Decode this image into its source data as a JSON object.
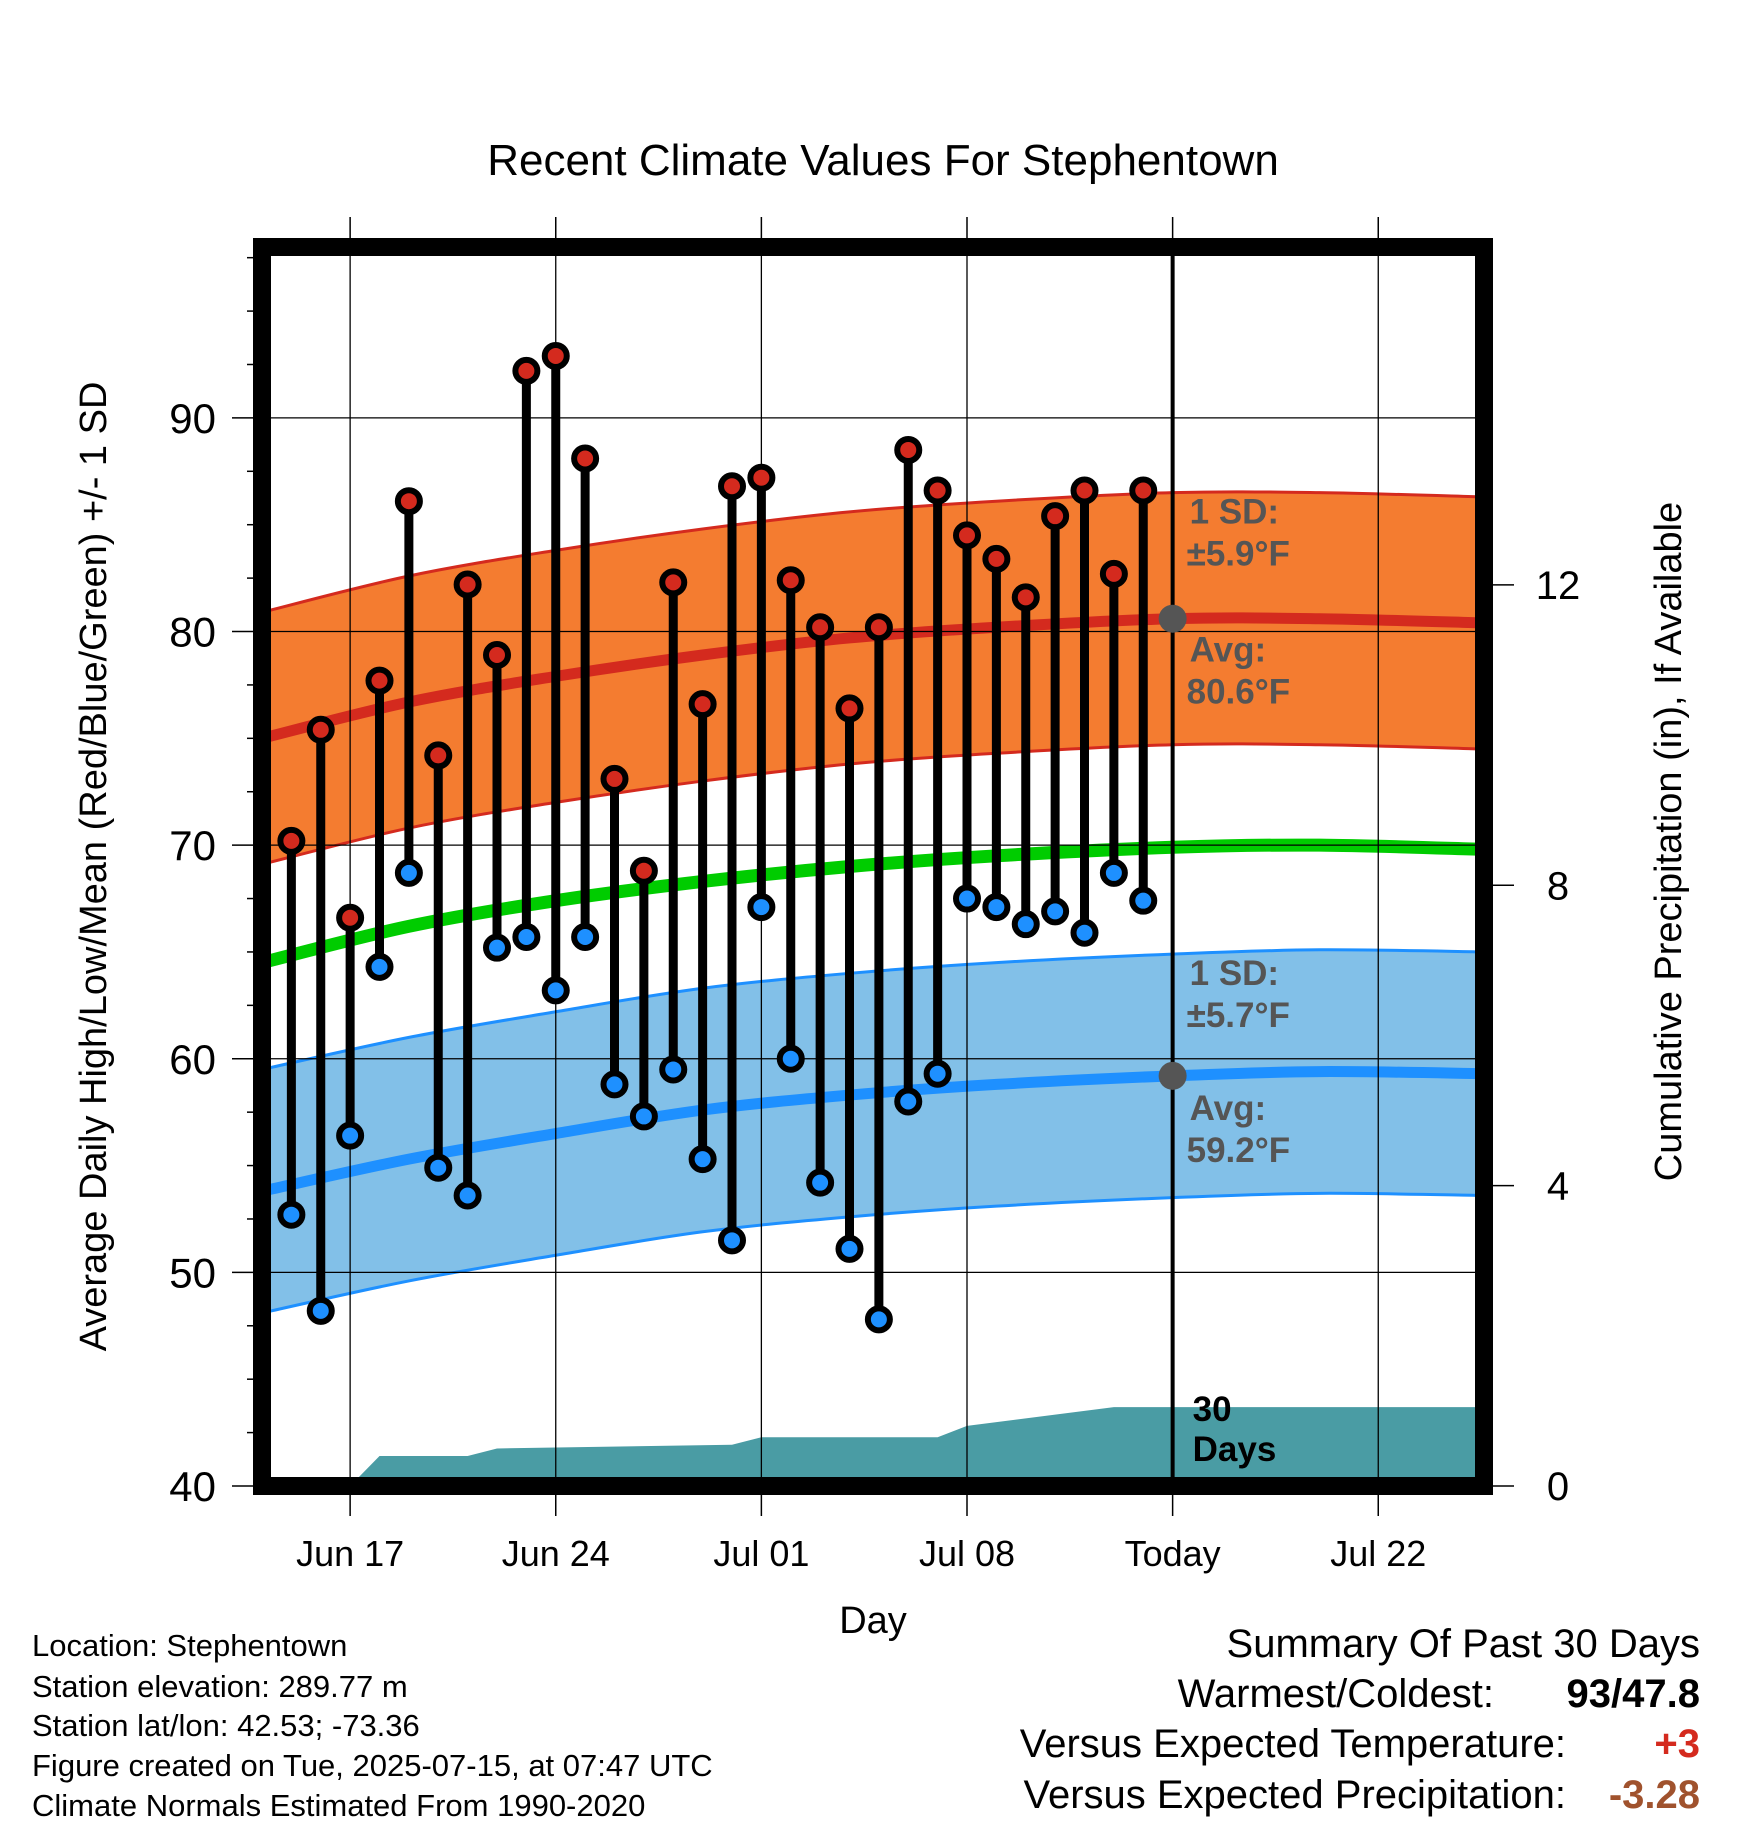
{
  "chart_data": {
    "type": "line",
    "title": "Recent Climate Values For Stephentown",
    "xlabel": "Day",
    "ylabel_left": "Average Daily High/Low/Mean (Red/Blue/Green) +/- 1 SD",
    "ylabel_right": "Cumulative Precipitation (in), If Available",
    "x_ticks": [
      {
        "day": 3,
        "label": "Jun 17"
      },
      {
        "day": 10,
        "label": "Jun 24"
      },
      {
        "day": 17,
        "label": "Jul 01"
      },
      {
        "day": 24,
        "label": "Jul 08"
      },
      {
        "day": 31,
        "label": "Today"
      },
      {
        "day": 38,
        "label": "Jul 22"
      }
    ],
    "xlim": [
      0,
      41.6
    ],
    "ylim_left": [
      40,
      98
    ],
    "yticks_left": [
      40,
      50,
      60,
      70,
      80,
      90
    ],
    "ylim_right": [
      0,
      16.5
    ],
    "yticks_right": [
      0,
      4,
      8,
      12
    ],
    "today_day": 31,
    "days": [
      1,
      2,
      3,
      4,
      5,
      6,
      7,
      8,
      9,
      10,
      11,
      12,
      13,
      14,
      15,
      16,
      17,
      18,
      19,
      20,
      21,
      22,
      23,
      24,
      25,
      26,
      27,
      28,
      29,
      30
    ],
    "daily_high": [
      70.2,
      75.4,
      66.6,
      77.7,
      86.1,
      74.2,
      82.2,
      78.9,
      92.2,
      92.9,
      88.1,
      73.1,
      68.8,
      82.3,
      76.6,
      86.8,
      87.2,
      82.4,
      80.2,
      76.4,
      80.2,
      88.5,
      86.6,
      84.5,
      83.4,
      81.6,
      85.4,
      86.6,
      82.7,
      86.6
    ],
    "daily_low": [
      52.7,
      48.2,
      56.4,
      64.3,
      68.7,
      54.9,
      53.6,
      65.2,
      65.7,
      63.2,
      65.7,
      58.8,
      57.3,
      59.5,
      55.3,
      51.5,
      67.1,
      60.0,
      54.2,
      51.1,
      47.8,
      58.0,
      59.3,
      67.5,
      67.1,
      66.3,
      66.9,
      65.9,
      68.7,
      67.4
    ],
    "normal_high": {
      "x": [
        0,
        5,
        10,
        15,
        20,
        25,
        31,
        36,
        41.6
      ],
      "avg": [
        75.0,
        76.7,
        77.9,
        78.9,
        79.7,
        80.2,
        80.6,
        80.6,
        80.4
      ],
      "sd": 5.9
    },
    "normal_low": {
      "x": [
        0,
        5,
        10,
        15,
        20,
        25,
        31,
        36,
        41.6
      ],
      "avg": [
        53.8,
        55.3,
        56.5,
        57.6,
        58.3,
        58.8,
        59.2,
        59.4,
        59.3
      ],
      "sd": 5.7
    },
    "normal_mean": {
      "x": [
        0,
        5,
        10,
        15,
        20,
        25,
        31,
        36,
        41.6
      ],
      "avg": [
        64.5,
        66.2,
        67.4,
        68.3,
        69.0,
        69.5,
        69.9,
        70.0,
        69.8
      ]
    },
    "precip_cumulative": {
      "x": [
        3,
        4,
        7,
        8,
        16,
        17,
        23,
        24,
        27,
        29,
        41.6
      ],
      "y": [
        0.0,
        0.4,
        0.4,
        0.5,
        0.55,
        0.65,
        0.65,
        0.8,
        0.95,
        1.05,
        1.05
      ]
    },
    "colors": {
      "high_band": "#f47c30",
      "high_line": "#d42a1e",
      "low_band": "#82c0e8",
      "low_line": "#1e90ff",
      "mean_line": "#00cc00",
      "precip": "#4a9ca4",
      "high_dot": "#d42a1e",
      "low_dot": "#1e90ff",
      "annotation": "#555555"
    },
    "annotations": {
      "high_sd": {
        "line1": "1 SD:",
        "line2": "±5.9°F"
      },
      "high_avg": {
        "line1": "Avg:",
        "line2": "80.6°F"
      },
      "low_sd": {
        "line1": "1 SD:",
        "line2": "±5.7°F"
      },
      "low_avg": {
        "line1": "Avg:",
        "line2": "59.2°F"
      },
      "precip_days": {
        "line1": "30",
        "line2": "Days"
      }
    }
  },
  "info": {
    "location": "Location: Stephentown",
    "elevation": "Station elevation: 289.77 m",
    "latlon": "Station lat/lon: 42.53; -73.36",
    "created": "Figure created on Tue, 2025-07-15, at 07:47 UTC",
    "normals": "Climate Normals Estimated From 1990-2020"
  },
  "summary": {
    "title": "Summary Of Past 30 Days",
    "warmest_label": "Warmest/Coldest:",
    "warmest": "93",
    "coldest": "47.8",
    "temp_label": "Versus Expected Temperature:",
    "temp_value": "+3",
    "temp_color": "#d42a1e",
    "precip_label": "Versus Expected Precipitation:",
    "precip_value": "-3.28",
    "precip_color": "#a0522d"
  }
}
